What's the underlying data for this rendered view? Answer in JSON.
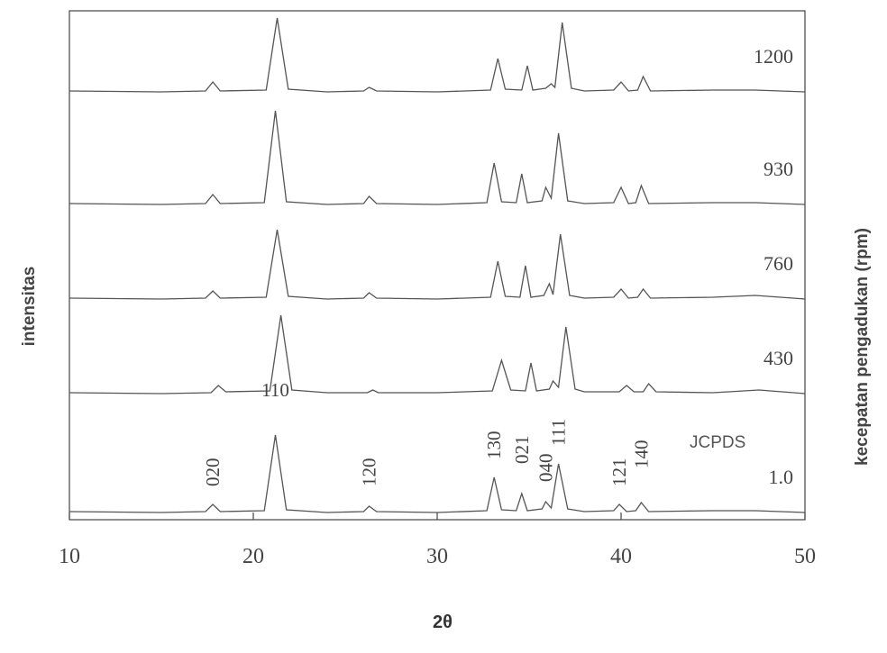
{
  "chart_data": {
    "type": "line",
    "x_label": "2θ",
    "y_label": "intensitas",
    "legend_title": "kecepatan pengadukan (rpm)",
    "xlim": [
      10,
      50
    ],
    "xticks": [
      10,
      20,
      30,
      40,
      50
    ],
    "reference_label": "JCPDS",
    "annotations": [
      {
        "text": "020",
        "x": 17.8
      },
      {
        "text": "110",
        "x": 21.2
      },
      {
        "text": "120",
        "x": 26.3
      },
      {
        "text": "130",
        "x": 33.1
      },
      {
        "text": "021",
        "x": 34.6
      },
      {
        "text": "040",
        "x": 35.9
      },
      {
        "text": "111",
        "x": 36.6
      },
      {
        "text": "121",
        "x": 39.9
      },
      {
        "text": "140",
        "x": 41.1
      }
    ],
    "series": [
      {
        "name": "1.0",
        "color": "#555555",
        "x": [
          10,
          15,
          17.4,
          17.8,
          18.2,
          20.6,
          21.2,
          21.8,
          24,
          26,
          26.3,
          26.7,
          30,
          32.7,
          33.1,
          33.5,
          34.3,
          34.6,
          34.9,
          35.7,
          35.9,
          36.2,
          36.6,
          37.1,
          38,
          39.6,
          39.9,
          40.3,
          40.8,
          41.1,
          41.5,
          45,
          47.3,
          50
        ],
        "values": [
          2,
          1,
          2,
          10,
          2,
          3,
          87,
          4,
          1,
          2,
          8,
          2,
          1,
          3,
          40,
          4,
          3,
          22,
          3,
          5,
          13,
          6,
          55,
          5,
          2,
          3,
          10,
          2,
          3,
          12,
          2,
          3,
          3,
          1
        ]
      },
      {
        "name": "430",
        "color": "#555555",
        "x": [
          10,
          15,
          17.7,
          18.1,
          18.5,
          20.9,
          21.5,
          22.1,
          24,
          26.2,
          26.5,
          26.8,
          30,
          33,
          33.5,
          34,
          34.8,
          35.1,
          35.4,
          36.1,
          36.3,
          36.6,
          37,
          37.5,
          38,
          39.9,
          40.3,
          40.7,
          41.2,
          41.5,
          41.9,
          45,
          47.5,
          50
        ],
        "values": [
          2,
          1,
          2,
          10,
          3,
          4,
          88,
          5,
          2,
          2,
          5,
          2,
          2,
          4,
          38,
          5,
          4,
          35,
          4,
          6,
          15,
          8,
          75,
          6,
          3,
          3,
          10,
          3,
          3,
          12,
          3,
          2,
          5,
          1
        ]
      },
      {
        "name": "760",
        "color": "#555555",
        "x": [
          10,
          15,
          17.4,
          17.8,
          18.2,
          20.7,
          21.3,
          21.9,
          24,
          26,
          26.3,
          26.7,
          30,
          32.9,
          33.3,
          33.7,
          34.5,
          34.8,
          35.1,
          35.8,
          36.1,
          36.3,
          36.7,
          37.2,
          38,
          39.6,
          40,
          40.4,
          40.9,
          41.2,
          41.6,
          45,
          47.3,
          50
        ],
        "values": [
          2,
          1,
          2,
          10,
          2,
          3,
          78,
          4,
          1,
          2,
          8,
          2,
          1,
          3,
          43,
          4,
          3,
          38,
          3,
          5,
          18,
          6,
          73,
          5,
          2,
          3,
          12,
          2,
          3,
          12,
          2,
          3,
          5,
          1
        ]
      },
      {
        "name": "930",
        "color": "#555555",
        "x": [
          10,
          15,
          17.4,
          17.8,
          18.2,
          20.6,
          21.2,
          21.8,
          24,
          26,
          26.3,
          26.7,
          30,
          32.7,
          33.1,
          33.5,
          34.3,
          34.6,
          34.9,
          35.7,
          35.9,
          36.2,
          36.6,
          37.1,
          38,
          39.6,
          40,
          40.4,
          40.8,
          41.1,
          41.5,
          45,
          47.3,
          50
        ],
        "values": [
          2,
          1,
          2,
          12,
          2,
          3,
          105,
          4,
          1,
          2,
          10,
          2,
          1,
          3,
          47,
          4,
          3,
          35,
          3,
          5,
          20,
          8,
          80,
          5,
          2,
          3,
          20,
          2,
          3,
          22,
          2,
          3,
          3,
          1
        ]
      },
      {
        "name": "1200",
        "color": "#555555",
        "x": [
          10,
          15,
          17.4,
          17.8,
          18.2,
          20.7,
          21.3,
          21.9,
          24,
          26,
          26.3,
          26.7,
          30,
          32.9,
          33.3,
          33.7,
          34.6,
          34.9,
          35.2,
          35.9,
          36.2,
          36.4,
          36.8,
          37.3,
          38,
          39.6,
          40,
          40.4,
          40.9,
          41.2,
          41.6,
          45,
          47.3,
          50
        ],
        "values": [
          2,
          1,
          2,
          12,
          2,
          3,
          83,
          4,
          1,
          2,
          6,
          2,
          1,
          3,
          38,
          4,
          3,
          30,
          3,
          5,
          10,
          6,
          78,
          5,
          2,
          3,
          12,
          2,
          3,
          18,
          2,
          3,
          3,
          1
        ]
      }
    ]
  }
}
